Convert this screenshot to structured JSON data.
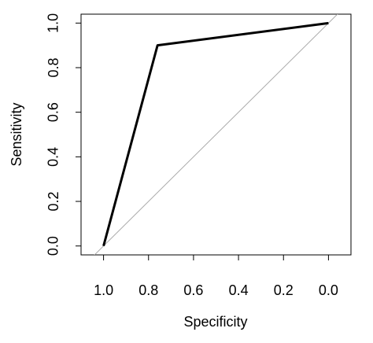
{
  "chart_data": {
    "type": "line",
    "xlabel": "Specificity",
    "ylabel": "Sensitivity",
    "x": [
      1,
      0.76,
      0
    ],
    "series": [
      {
        "color": "#000000",
        "values": [
          0,
          0.9,
          1
        ]
      }
    ],
    "xlim": [
      1.1,
      -0.1
    ],
    "ylim": [
      -0.04,
      1.04
    ],
    "xticks": [
      {
        "value": 1,
        "label": "1.0"
      },
      0.8,
      0.6,
      0.4,
      0.2,
      {
        "value": 0,
        "label": "0.0"
      }
    ],
    "yticks": [
      {
        "value": 0,
        "label": "0.0"
      },
      0.2,
      0.4,
      0.6,
      0.8,
      {
        "value": 1,
        "label": "1.0"
      }
    ],
    "diagonal_color": "#aaaaaa"
  }
}
